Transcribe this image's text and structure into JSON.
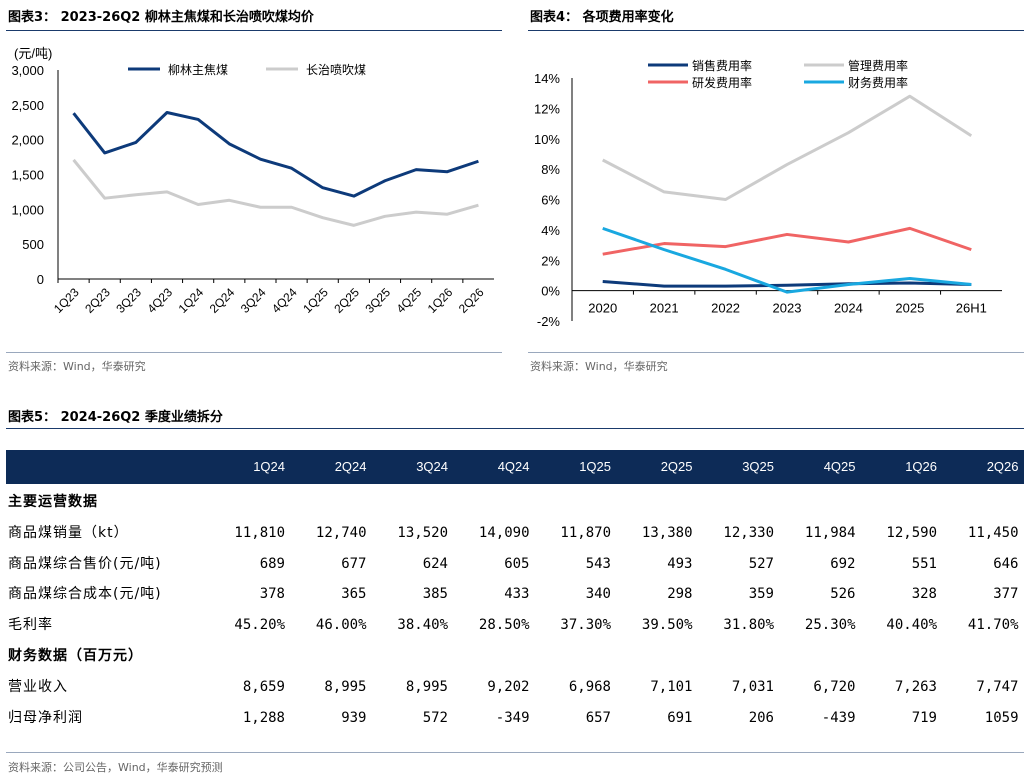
{
  "fig3": {
    "title": "图表3：  2023-26Q2 柳林主焦煤和长治喷吹煤均价",
    "source": "资料来源：Wind，华泰研究",
    "chart_data": {
      "type": "line",
      "ylabel": "(元/吨)",
      "ylim": [
        0,
        3000
      ],
      "yticks": [
        "0",
        "500",
        "1,000",
        "1,500",
        "2,000",
        "2,500",
        "3,000"
      ],
      "categories": [
        "1Q23",
        "2Q23",
        "3Q23",
        "4Q23",
        "1Q24",
        "2Q24",
        "3Q24",
        "4Q24",
        "1Q25",
        "2Q25",
        "3Q25",
        "4Q25",
        "1Q26",
        "2Q26"
      ],
      "series": [
        {
          "name": "柳林主焦煤",
          "color": "#0d3a7a",
          "values": [
            2380,
            1810,
            1960,
            2390,
            2290,
            1940,
            1720,
            1590,
            1310,
            1190,
            1410,
            1570,
            1540,
            1690
          ]
        },
        {
          "name": "长治喷吹煤",
          "color": "#cccccc",
          "values": [
            1710,
            1160,
            1210,
            1250,
            1070,
            1130,
            1030,
            1030,
            880,
            770,
            900,
            960,
            930,
            1060
          ]
        }
      ],
      "legend": "top"
    }
  },
  "fig4": {
    "title": "图表4：  各项费用率变化",
    "source": "资料来源：Wind，华泰研究",
    "chart_data": {
      "type": "line",
      "ylim": [
        -2,
        14
      ],
      "yticks": [
        "-2%",
        "0%",
        "2%",
        "4%",
        "6%",
        "8%",
        "10%",
        "12%",
        "14%"
      ],
      "categories": [
        "2020",
        "2021",
        "2022",
        "2023",
        "2024",
        "2025",
        "26H1"
      ],
      "series": [
        {
          "name": "销售费用率",
          "color": "#0d3a7a",
          "values": [
            0.6,
            0.3,
            0.3,
            0.35,
            0.45,
            0.5,
            0.4
          ]
        },
        {
          "name": "管理费用率",
          "color": "#cccccc",
          "values": [
            8.6,
            6.5,
            6.0,
            8.3,
            10.4,
            12.8,
            10.2
          ]
        },
        {
          "name": "研发费用率",
          "color": "#f06464",
          "values": [
            2.4,
            3.1,
            2.9,
            3.7,
            3.2,
            4.1,
            2.7
          ]
        },
        {
          "name": "财务费用率",
          "color": "#19a8e0",
          "values": [
            4.1,
            2.7,
            1.4,
            -0.1,
            0.4,
            0.8,
            0.4
          ]
        }
      ],
      "legend": "top"
    }
  },
  "fig5": {
    "title": "图表5：  2024-26Q2 季度业绩拆分",
    "source": "资料来源：公司公告，Wind，华泰研究预测",
    "columns": [
      "1Q24",
      "2Q24",
      "3Q24",
      "4Q24",
      "1Q25",
      "2Q25",
      "3Q25",
      "4Q25",
      "1Q26",
      "2Q26"
    ],
    "rows": [
      {
        "label": "主要运营数据",
        "section": true,
        "values": []
      },
      {
        "label": "商品煤销量（kt）",
        "section": false,
        "values": [
          "11,810",
          "12,740",
          "13,520",
          "14,090",
          "11,870",
          "13,380",
          "12,330",
          "11,984",
          "12,590",
          "11,450"
        ]
      },
      {
        "label": "商品煤综合售价(元/吨)",
        "section": false,
        "values": [
          "689",
          "677",
          "624",
          "605",
          "543",
          "493",
          "527",
          "692",
          "551",
          "646"
        ]
      },
      {
        "label": "商品煤综合成本(元/吨)",
        "section": false,
        "values": [
          "378",
          "365",
          "385",
          "433",
          "340",
          "298",
          "359",
          "526",
          "328",
          "377"
        ]
      },
      {
        "label": "毛利率",
        "section": false,
        "values": [
          "45.20%",
          "46.00%",
          "38.40%",
          "28.50%",
          "37.30%",
          "39.50%",
          "31.80%",
          "25.30%",
          "40.40%",
          "41.70%"
        ]
      },
      {
        "label": "财务数据（百万元）",
        "section": true,
        "values": []
      },
      {
        "label": "营业收入",
        "section": false,
        "values": [
          "8,659",
          "8,995",
          "8,995",
          "9,202",
          "6,968",
          "7,101",
          "7,031",
          "6,720",
          "7,263",
          "7,747"
        ]
      },
      {
        "label": "归母净利润",
        "section": false,
        "values": [
          "1,288",
          "939",
          "572",
          "-349",
          "657",
          "691",
          "206",
          "-439",
          "719",
          "1059"
        ]
      }
    ]
  }
}
